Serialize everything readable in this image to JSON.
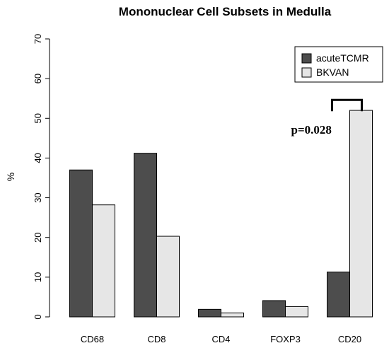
{
  "chart_data": {
    "type": "bar",
    "title": "Mononuclear Cell Subsets in Medulla",
    "xlabel": "",
    "ylabel": "%",
    "ylim": [
      0,
      70
    ],
    "yticks": [
      0,
      10,
      20,
      30,
      40,
      50,
      60,
      70
    ],
    "categories": [
      "CD68",
      "CD8",
      "CD4",
      "FOXP3",
      "CD20"
    ],
    "series": [
      {
        "name": "acuteTCMR",
        "color": "#4d4d4d",
        "values": [
          37,
          41.2,
          1.9,
          4.1,
          11.3
        ]
      },
      {
        "name": "BKVAN",
        "color": "#e6e6e6",
        "values": [
          28.2,
          20.3,
          1.0,
          2.6,
          52
        ]
      }
    ],
    "legend": "top-right",
    "grid": false,
    "annotation": {
      "text": "p=0.028",
      "category": "CD20",
      "y_bracket": 55
    }
  }
}
